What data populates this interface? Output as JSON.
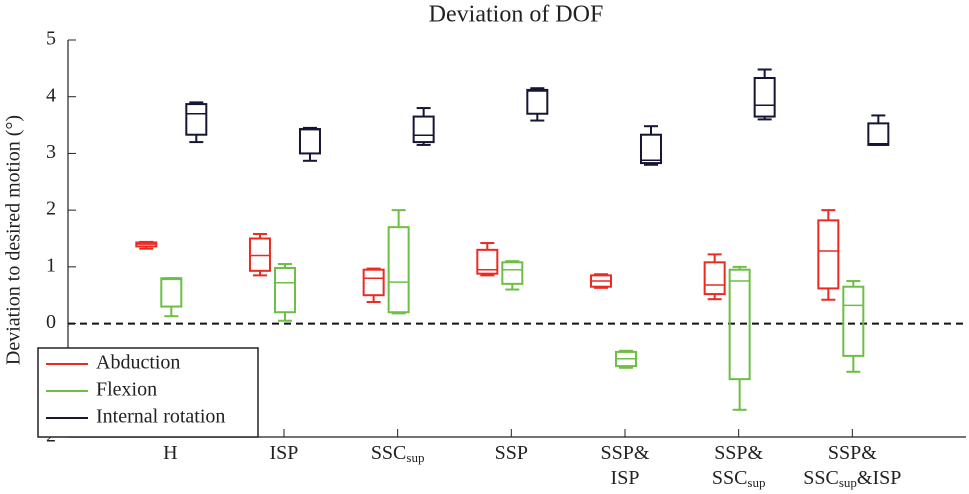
{
  "chart_data": {
    "type": "box",
    "title": "Deviation of DOF",
    "ylabel": "Deviation to desired motion (°)",
    "categories": [
      [
        [
          "H"
        ]
      ],
      [
        [
          "ISP"
        ]
      ],
      [
        [
          "SSC",
          "sup"
        ]
      ],
      [
        [
          "SSP"
        ]
      ],
      [
        [
          "SSP&"
        ],
        [
          "ISP"
        ]
      ],
      [
        [
          "SSP&"
        ],
        [
          "SSC",
          "sup"
        ]
      ],
      [
        [
          "SSP&"
        ],
        [
          "SSC",
          "sup",
          "&ISP"
        ]
      ]
    ],
    "ylim": [
      -2,
      5
    ],
    "yticks": [
      -2,
      -1,
      0,
      1,
      2,
      3,
      4,
      5
    ],
    "hline": 0,
    "legend": "lower left",
    "series": [
      {
        "name": "Abduction",
        "color": "#ec2a22",
        "min": [
          1.32,
          0.85,
          0.38,
          0.85,
          0.63,
          0.43,
          0.42
        ],
        "q1": [
          1.36,
          0.93,
          0.5,
          0.88,
          0.65,
          0.52,
          0.62
        ],
        "median": [
          1.4,
          1.2,
          0.8,
          0.95,
          0.75,
          0.68,
          1.28
        ],
        "q3": [
          1.43,
          1.5,
          0.95,
          1.3,
          0.85,
          1.08,
          1.82
        ],
        "max": [
          1.44,
          1.58,
          0.97,
          1.42,
          0.87,
          1.22,
          2.0
        ]
      },
      {
        "name": "Flexion",
        "color": "#6cbf44",
        "min": [
          0.13,
          0.05,
          0.18,
          0.6,
          -0.78,
          -1.52,
          -0.85
        ],
        "q1": [
          0.3,
          0.2,
          0.2,
          0.7,
          -0.75,
          -0.98,
          -0.57
        ],
        "median": [
          0.78,
          0.72,
          0.73,
          0.95,
          -0.62,
          0.75,
          0.32
        ],
        "q3": [
          0.8,
          0.98,
          1.7,
          1.08,
          -0.5,
          0.95,
          0.65
        ],
        "max": [
          0.8,
          1.05,
          2.0,
          1.1,
          -0.48,
          1.0,
          0.75
        ]
      },
      {
        "name": "Internal rotation",
        "color": "#151535",
        "min": [
          3.2,
          2.87,
          3.15,
          3.58,
          2.8,
          3.6,
          3.15
        ],
        "q1": [
          3.33,
          3.0,
          3.2,
          3.7,
          2.83,
          3.65,
          3.15
        ],
        "median": [
          3.7,
          3.42,
          3.32,
          4.1,
          2.88,
          3.85,
          3.17
        ],
        "q3": [
          3.87,
          3.43,
          3.65,
          4.12,
          3.33,
          4.33,
          3.53
        ],
        "max": [
          3.9,
          3.45,
          3.8,
          4.15,
          3.48,
          4.48,
          3.67
        ]
      }
    ]
  }
}
